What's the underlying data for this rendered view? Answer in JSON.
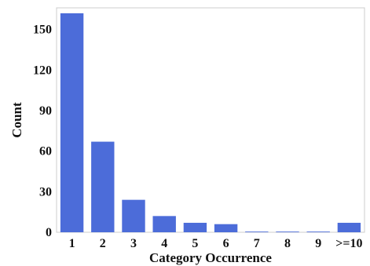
{
  "chart_data": {
    "type": "bar",
    "title": "",
    "xlabel": "Category Occurrence",
    "ylabel": "Count",
    "categories": [
      "1",
      "2",
      "3",
      "4",
      "5",
      "6",
      "7",
      "8",
      "9",
      ">=10"
    ],
    "values": [
      162,
      67,
      24,
      12,
      7,
      6,
      0.5,
      0.5,
      0.5,
      7
    ],
    "ylim": [
      0,
      166
    ],
    "yticks": [
      0,
      30,
      60,
      90,
      120,
      150
    ],
    "grid": false,
    "legend": "none",
    "bar_color": "#4c6cd9",
    "frame_color": "#cccccc"
  }
}
